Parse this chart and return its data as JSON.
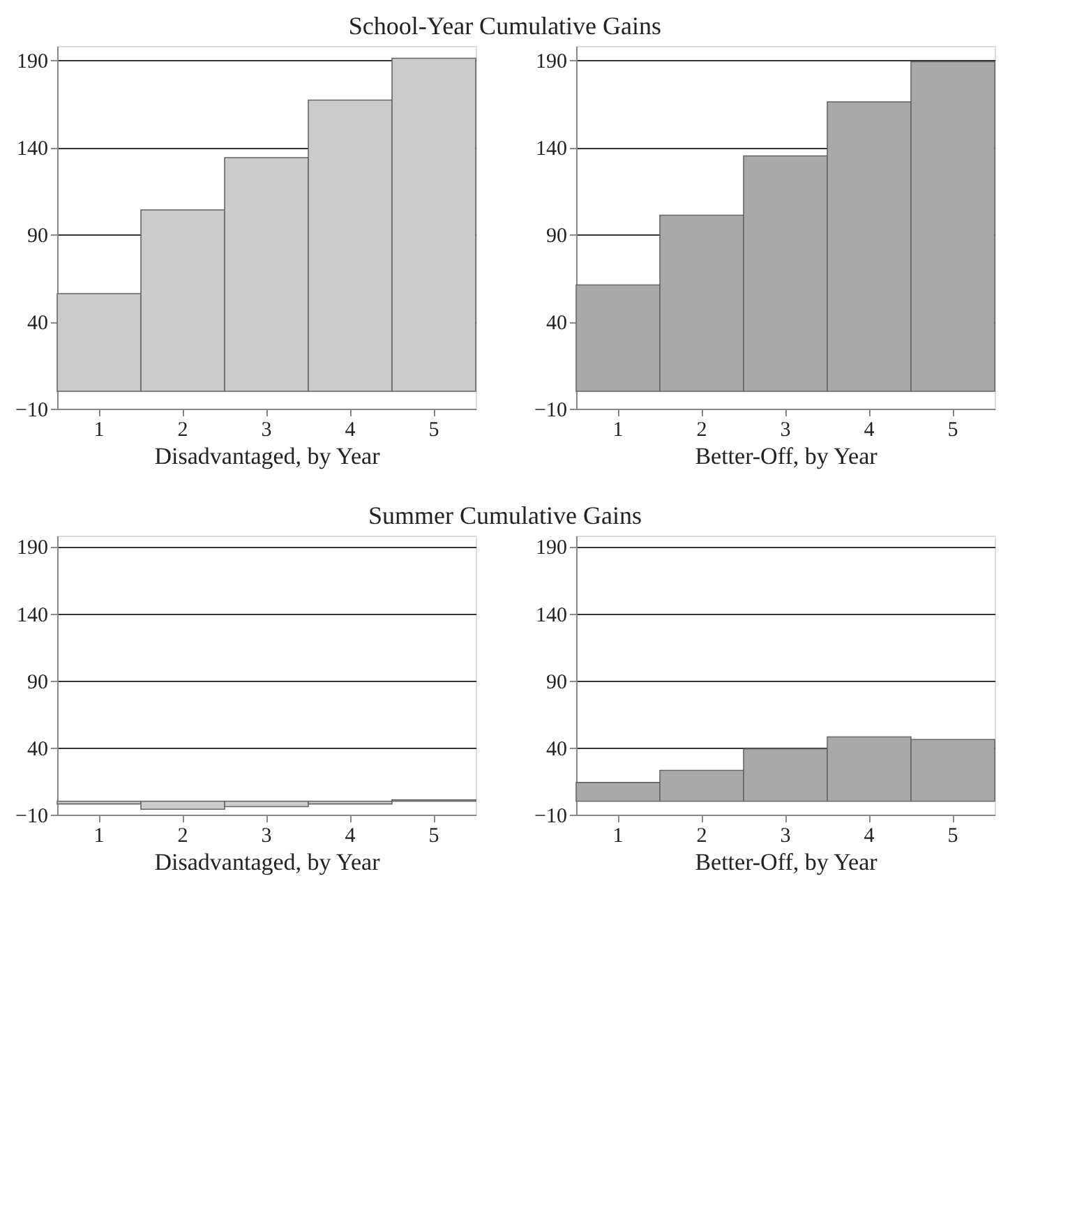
{
  "chart_data": [
    {
      "type": "bar",
      "title": "School-Year Cumulative Gains",
      "xlabel": "Disadvantaged, by Year",
      "categories": [
        "1",
        "2",
        "3",
        "4",
        "5"
      ],
      "values": [
        56,
        104,
        134,
        167,
        191
      ],
      "color": "#cbcbcb",
      "ylim": [
        -10,
        198
      ],
      "yticks": [
        -10,
        40,
        90,
        140,
        190
      ],
      "grid": "y"
    },
    {
      "type": "bar",
      "xlabel": "Better-Off, by Year",
      "categories": [
        "1",
        "2",
        "3",
        "4",
        "5"
      ],
      "values": [
        61,
        101,
        135,
        166,
        189
      ],
      "color": "#a9a9a9",
      "ylim": [
        -10,
        198
      ],
      "yticks": [
        -10,
        40,
        90,
        140,
        190
      ],
      "grid": "y"
    },
    {
      "type": "bar",
      "title": "Summer Cumulative Gains",
      "xlabel": "Disadvantaged, by Year",
      "categories": [
        "1",
        "2",
        "3",
        "4",
        "5"
      ],
      "values": [
        -2,
        -6,
        -4,
        -2,
        1
      ],
      "color": "#cbcbcb",
      "ylim": [
        -10,
        198
      ],
      "yticks": [
        -10,
        40,
        90,
        140,
        190
      ],
      "grid": "y"
    },
    {
      "type": "bar",
      "xlabel": "Better-Off, by Year",
      "categories": [
        "1",
        "2",
        "3",
        "4",
        "5"
      ],
      "values": [
        14,
        23,
        39,
        48,
        46
      ],
      "color": "#a9a9a9",
      "ylim": [
        -10,
        198
      ],
      "yticks": [
        -10,
        40,
        90,
        140,
        190
      ],
      "grid": "y"
    }
  ]
}
